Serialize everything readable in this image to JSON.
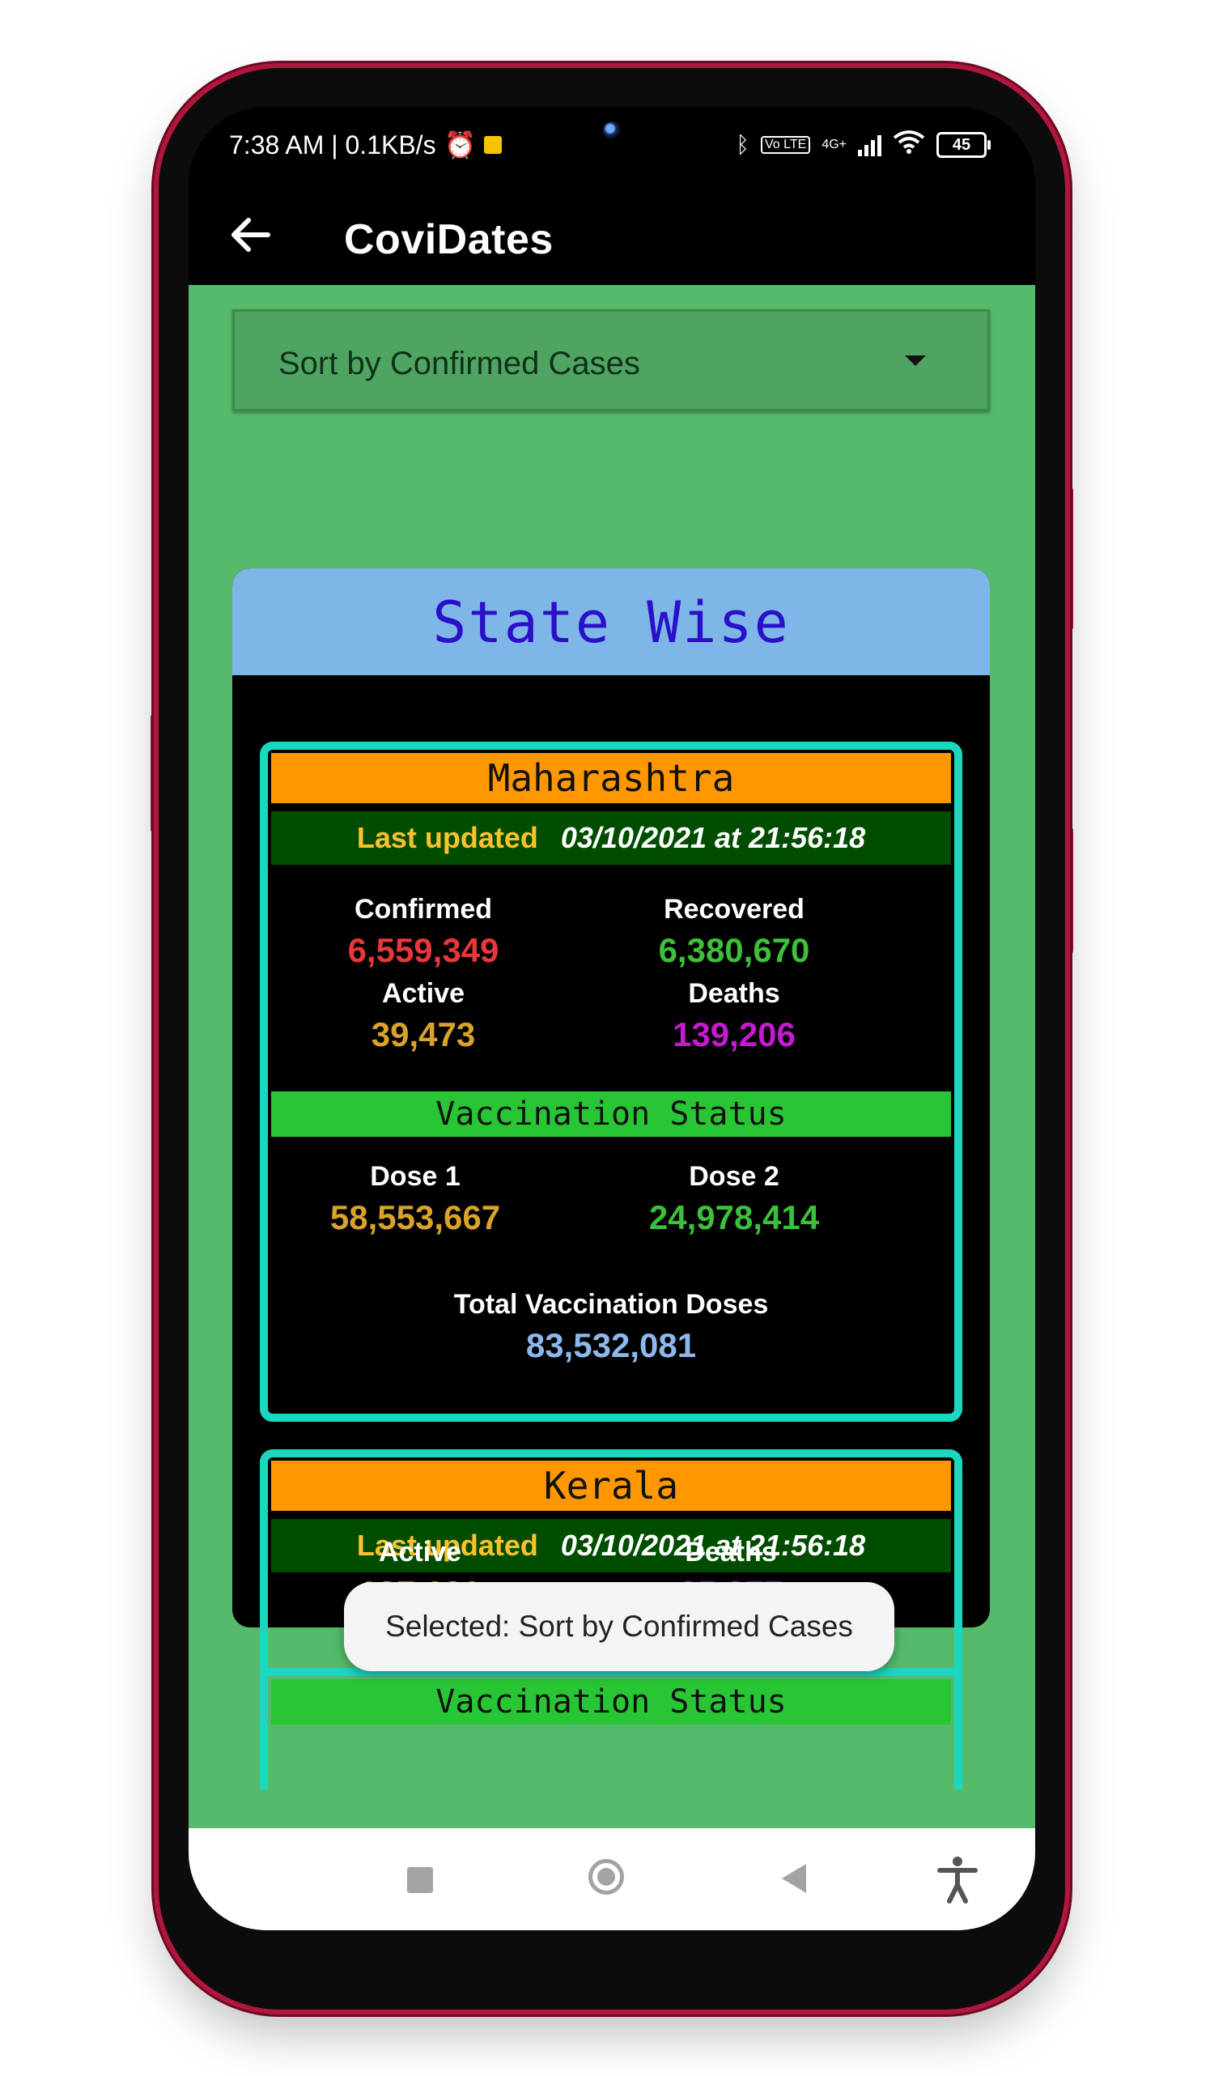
{
  "status_bar": {
    "time_speed": "7:38 AM | 0.1KB/s",
    "alarm_icon": "alarm-clock-icon",
    "network_type": "4G+",
    "volte": "Vo LTE",
    "battery": "45"
  },
  "appbar": {
    "title": "CoviDates",
    "back_icon": "arrow-left-icon"
  },
  "sort": {
    "selected": "Sort by Confirmed Cases"
  },
  "panel": {
    "title": "State Wise"
  },
  "labels": {
    "last_updated": "Last updated",
    "confirmed": "Confirmed",
    "recovered": "Recovered",
    "active": "Active",
    "deaths": "Deaths",
    "vaccination_status": "Vaccination Status",
    "dose1": "Dose 1",
    "dose2": "Dose 2",
    "total_doses": "Total Vaccination Doses"
  },
  "states": [
    {
      "name": "Maharashtra",
      "updated": "03/10/2021 at 21:56:18",
      "confirmed": "6,559,349",
      "recovered": "6,380,670",
      "active": "39,473",
      "deaths": "139,206",
      "dose1": "58,553,667",
      "dose2": "24,978,414",
      "total_doses": "83,532,081"
    },
    {
      "name": "Kerala",
      "updated": "03/10/2021 at 21:56:18",
      "active": "137,630",
      "deaths": "25,377"
    }
  ],
  "toast": {
    "text": "Selected: Sort by Confirmed Cases"
  },
  "colors": {
    "confirmed": "#e8373a",
    "recovered": "#3cbf3a",
    "active": "#d9a22a",
    "deaths": "#c41ad0",
    "total": "#8cb8ee",
    "card_border": "#1cd7c0",
    "state_header": "#ff9800",
    "content_bg": "#55bb6b"
  }
}
